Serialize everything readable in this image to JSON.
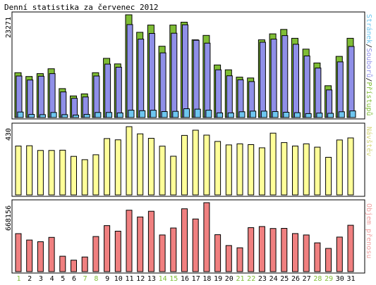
{
  "chart_data": {
    "type": "bar",
    "title": "Denní statistika za červenec 2012",
    "categories": [
      "1",
      "2",
      "3",
      "4",
      "5",
      "6",
      "7",
      "8",
      "9",
      "10",
      "11",
      "12",
      "13",
      "14",
      "15",
      "16",
      "17",
      "18",
      "19",
      "20",
      "21",
      "22",
      "23",
      "24",
      "25",
      "26",
      "27",
      "28",
      "29",
      "30",
      "31"
    ],
    "weekend_days": [
      "1",
      "7",
      "8",
      "14",
      "15",
      "21",
      "22",
      "28",
      "29"
    ],
    "panels": [
      {
        "id": "hits",
        "ymax_label": "23271",
        "ymax": 23271,
        "legend": [
          {
            "text": "Stránek",
            "color": "#6ec6f0"
          },
          {
            "text": "/",
            "color": "#000000"
          },
          {
            "text": "Souborů",
            "color": "#8f8fe8"
          },
          {
            "text": "/",
            "color": "#000000"
          },
          {
            "text": "Přístupů",
            "color": "#7fbd35"
          }
        ],
        "series": [
          {
            "name": "Přístupů",
            "color": "#7fbd35",
            "values": [
              10150,
              9300,
              9950,
              11050,
              6550,
              4900,
              5350,
              10150,
              13400,
              12150,
              23271,
              19300,
              20950,
              16150,
              20950,
              21600,
              17600,
              18600,
              11900,
              10800,
              9150,
              8950,
              17600,
              18950,
              19950,
              17950,
              15500,
              12350,
              7200,
              13850,
              17950
            ]
          },
          {
            "name": "Souborů",
            "color": "#8f8fe8",
            "values": [
              9400,
              8500,
              9350,
              9950,
              5800,
              4350,
              4650,
              9400,
              12100,
              11400,
              21050,
              17750,
              19050,
              14650,
              19100,
              21000,
              17500,
              16850,
              10800,
              9450,
              8550,
              8150,
              17050,
              17750,
              18550,
              16600,
              13950,
              11200,
              6250,
              12600,
              16100
            ]
          },
          {
            "name": "Stránek",
            "color": "#6ec6f0",
            "values": [
              1250,
              700,
              650,
              1150,
              650,
              550,
              700,
              1150,
              1150,
              1050,
              1650,
              1550,
              1650,
              1350,
              1400,
              2000,
              1900,
              1650,
              1050,
              1050,
              1300,
              1450,
              1450,
              1350,
              1200,
              1100,
              900,
              1000,
              950,
              1300,
              1500
            ]
          }
        ]
      },
      {
        "id": "visits",
        "ymax_label": "430",
        "ymax": 430,
        "legend": [
          {
            "text": "Návštěv",
            "color": "#d6d67a"
          }
        ],
        "series": [
          {
            "name": "Návštěv",
            "color": "#ffff99",
            "values": [
              308,
              310,
              280,
              280,
              282,
              243,
              222,
              253,
              355,
              347,
              430,
              385,
              357,
              307,
              244,
              375,
              408,
              377,
              337,
              315,
              322,
              317,
              297,
              389,
              330,
              308,
              322,
              301,
              237,
              346,
              359
            ]
          }
        ]
      },
      {
        "id": "bytes",
        "ymax_label": "668156",
        "ymax": 668156,
        "legend": [
          {
            "text": "Objem přenosu",
            "color": "#f0a0a0"
          }
        ],
        "series": [
          {
            "name": "Objem přenosu",
            "color": "#f08080",
            "values": [
              368000,
              306000,
              290000,
              332000,
              149000,
              111000,
              142000,
              340000,
              446000,
              392000,
              595000,
              530000,
              585000,
              355000,
              423000,
              609000,
              510000,
              668156,
              358000,
              253000,
              231000,
              426000,
              437000,
              418000,
              419000,
              369000,
              355000,
              279000,
              225000,
              335000,
              449000
            ]
          }
        ]
      }
    ]
  }
}
